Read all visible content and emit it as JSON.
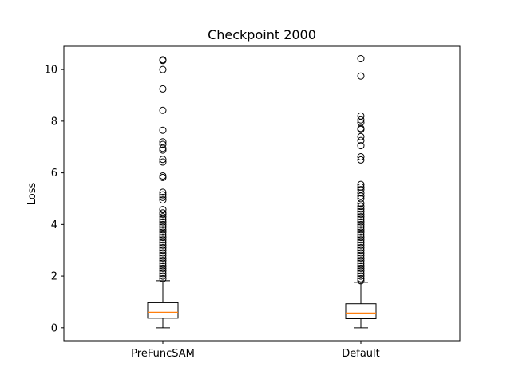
{
  "chart_data": {
    "type": "box",
    "title": "Checkpoint 2000",
    "xlabel": "",
    "ylabel": "Loss",
    "ylim": [
      -0.5,
      10.9
    ],
    "yticks": [
      0,
      2,
      4,
      6,
      8,
      10
    ],
    "ytick_labels": [
      "0",
      "2",
      "4",
      "6",
      "8",
      "10"
    ],
    "grid": false,
    "categories": [
      "PreFuncSAM",
      "Default"
    ],
    "boxes": [
      {
        "category": "PreFuncSAM",
        "whisker_low": 0.0,
        "q1": 0.37,
        "median": 0.6,
        "q3": 0.97,
        "whisker_high": 1.82,
        "outliers": [
          10.38,
          10.35,
          10.0,
          9.25,
          8.42,
          7.65,
          7.2,
          7.1,
          6.95,
          6.88,
          6.52,
          6.42,
          5.88,
          5.82,
          5.25,
          5.15,
          5.05,
          4.95,
          4.58,
          4.45,
          4.4,
          4.3,
          4.2,
          4.1,
          4.0,
          3.9,
          3.8,
          3.7,
          3.6,
          3.5,
          3.4,
          3.3,
          3.2,
          3.1,
          3.0,
          2.9,
          2.8,
          2.7,
          2.6,
          2.5,
          2.4,
          2.3,
          2.2,
          2.1,
          2.0,
          1.9
        ]
      },
      {
        "category": "Default",
        "whisker_low": 0.0,
        "q1": 0.35,
        "median": 0.57,
        "q3": 0.93,
        "whisker_high": 1.76,
        "outliers": [
          10.42,
          9.75,
          8.2,
          8.05,
          7.95,
          7.72,
          7.68,
          7.4,
          7.25,
          7.05,
          6.62,
          6.5,
          5.55,
          5.45,
          5.35,
          5.22,
          5.1,
          5.0,
          4.82,
          4.7,
          4.6,
          4.5,
          4.4,
          4.3,
          4.2,
          4.1,
          4.0,
          3.9,
          3.8,
          3.7,
          3.6,
          3.5,
          3.4,
          3.3,
          3.2,
          3.1,
          3.0,
          2.9,
          2.8,
          2.7,
          2.6,
          2.5,
          2.4,
          2.3,
          2.2,
          2.1,
          2.0,
          1.9,
          1.82
        ]
      }
    ],
    "colors": {
      "box": "#000000",
      "median": "#ff7f0e",
      "outlier": "#000000"
    }
  }
}
